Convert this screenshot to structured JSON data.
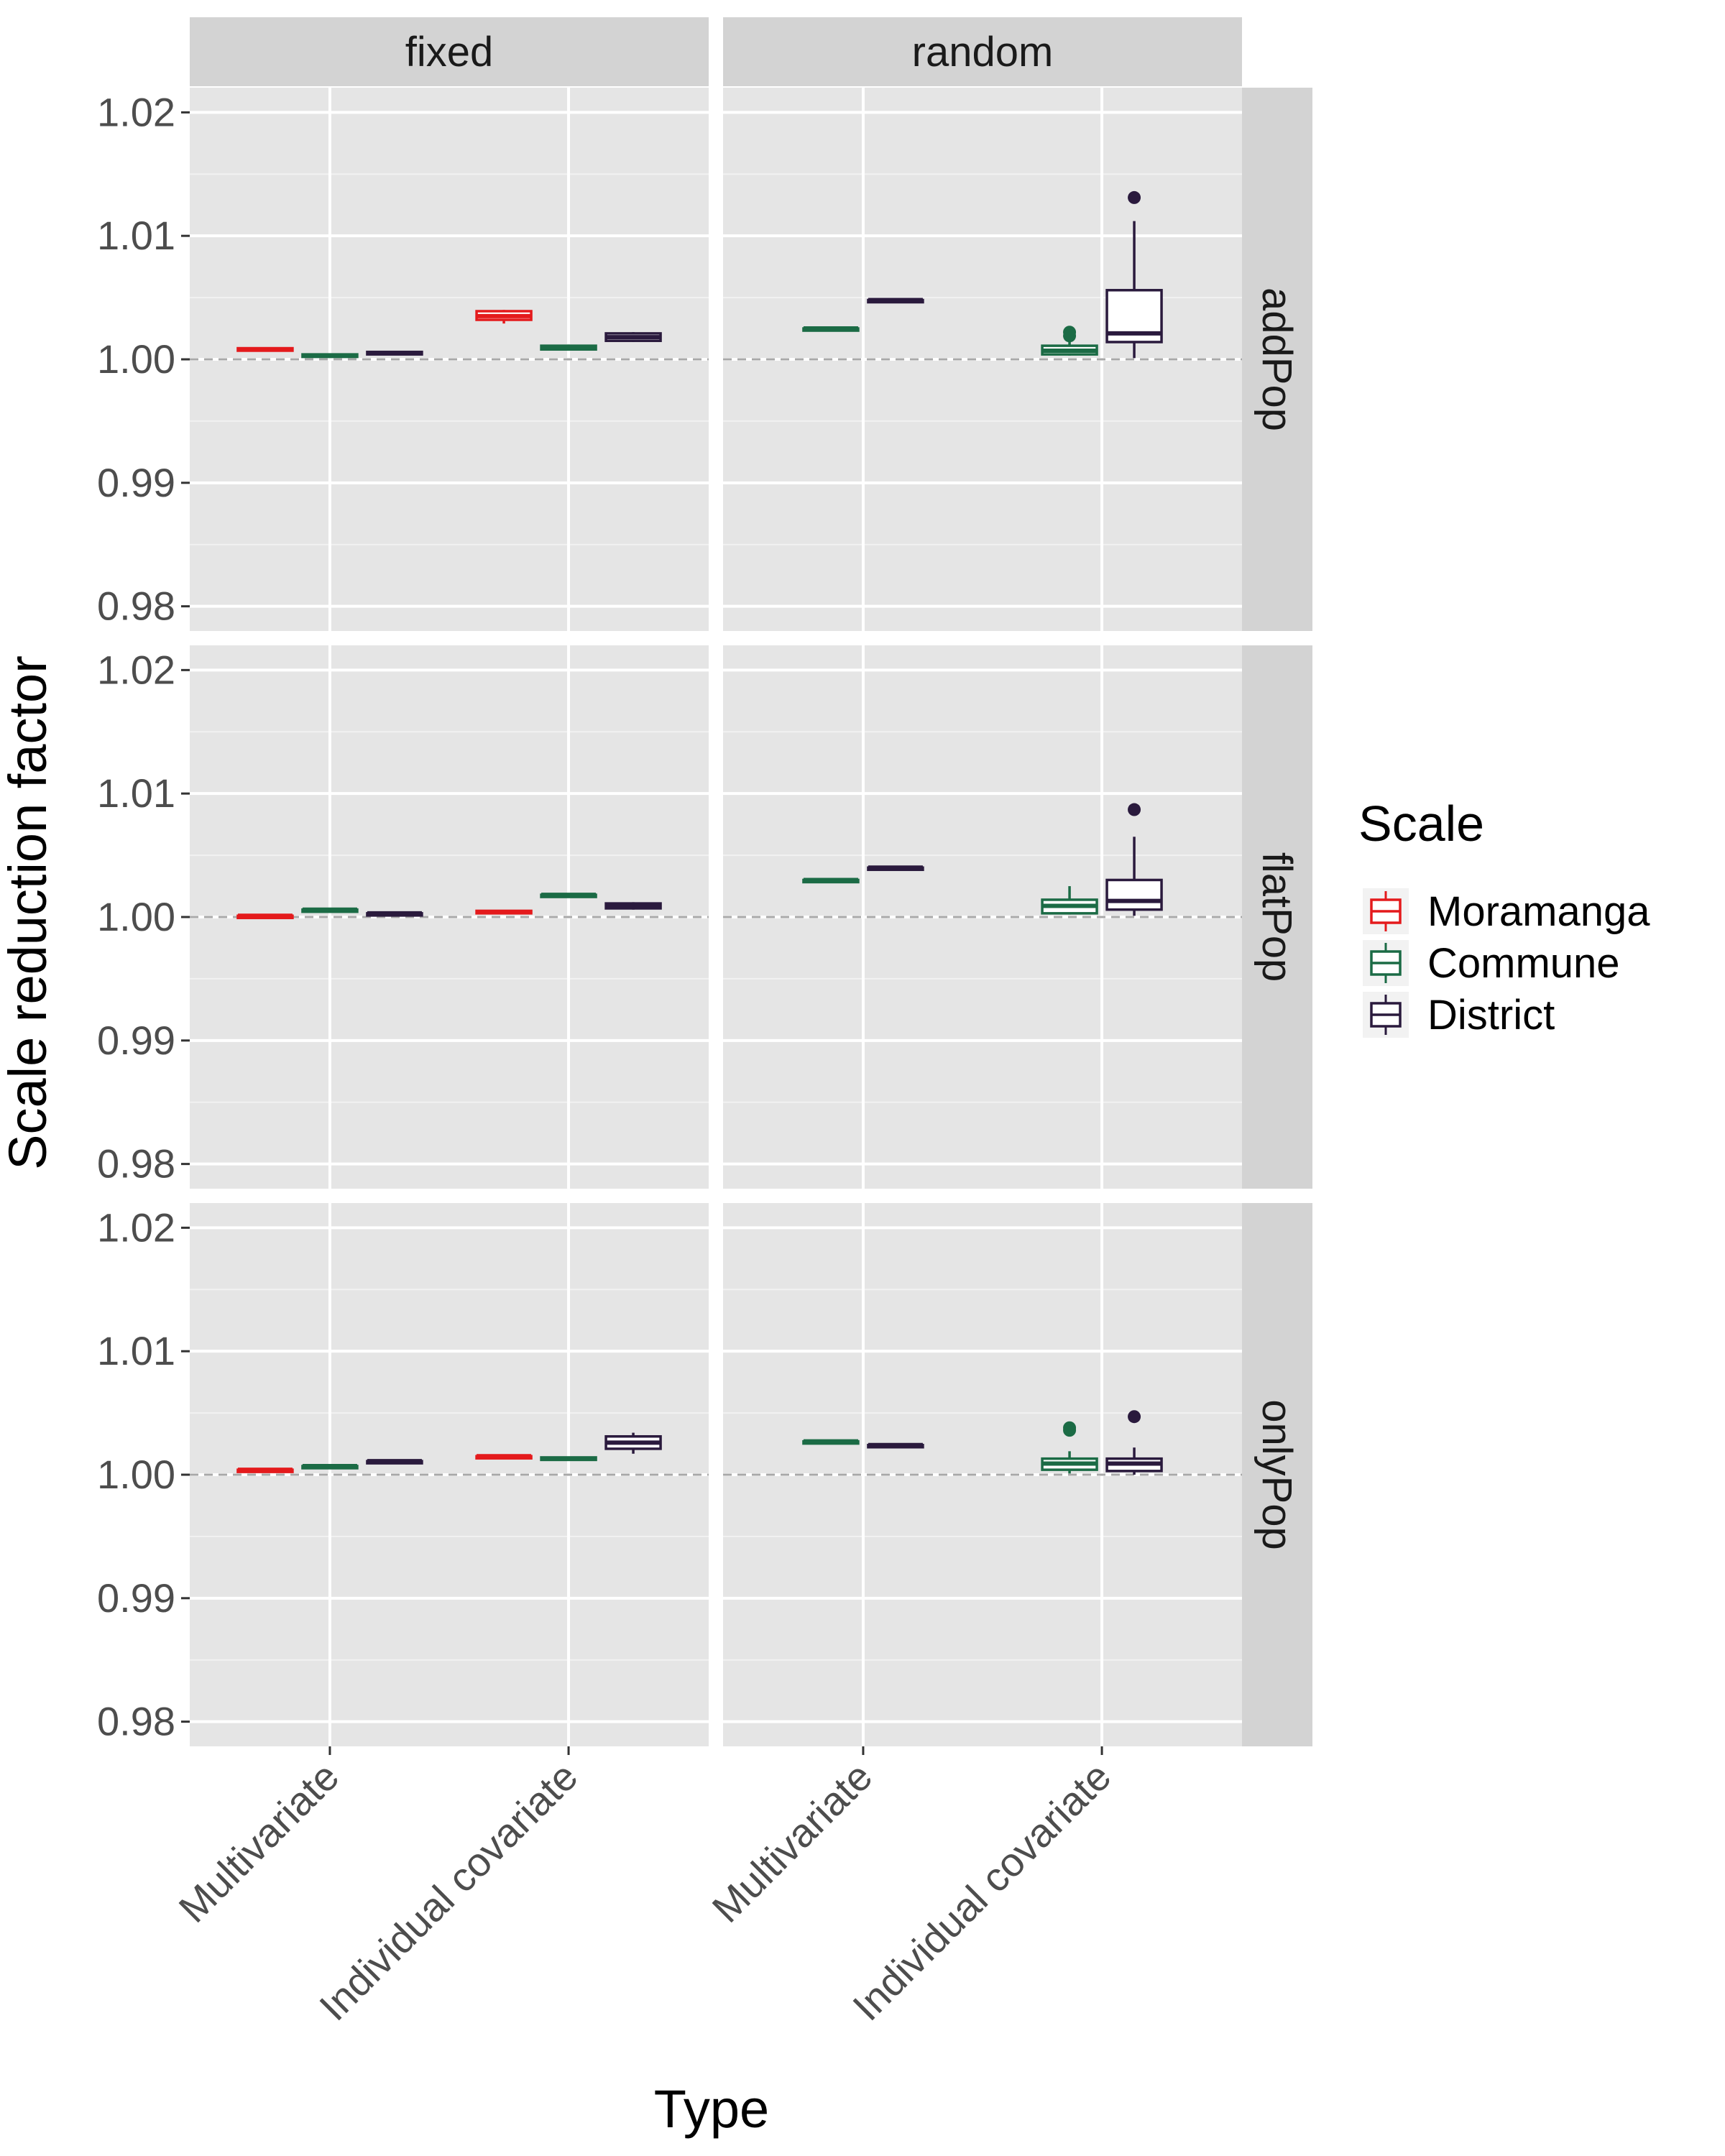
{
  "chart_data": {
    "type": "box",
    "ylabel": "Scale reduction factor",
    "xlabel": "Type",
    "ylim": [
      0.978,
      1.022
    ],
    "yticks": [
      0.98,
      0.99,
      1.0,
      1.01,
      1.02
    ],
    "ytick_labels": [
      "0.98",
      "0.99",
      "1.00",
      "1.01",
      "1.02"
    ],
    "reference_line": 1.0,
    "categories": [
      "Multivariate",
      "Individual covariate"
    ],
    "facet_cols": [
      "fixed",
      "random"
    ],
    "facet_rows": [
      "addPop",
      "flatPop",
      "onlyPop"
    ],
    "legend": {
      "title": "Scale",
      "position": "right",
      "entries": [
        {
          "name": "Moramanga",
          "color": "#e41a1c"
        },
        {
          "name": "Commune",
          "color": "#1b6b45"
        },
        {
          "name": "District",
          "color": "#2a1a3d"
        }
      ]
    },
    "panels": [
      {
        "col": "fixed",
        "row": "addPop",
        "boxes": [
          {
            "category": "Multivariate",
            "scale": "Moramanga",
            "min": 1.0007,
            "q1": 1.0007,
            "median": 1.0008,
            "q3": 1.0009,
            "max": 1.0009,
            "outliers": []
          },
          {
            "category": "Multivariate",
            "scale": "Commune",
            "min": 1.0002,
            "q1": 1.0002,
            "median": 1.0003,
            "q3": 1.0004,
            "max": 1.0004,
            "outliers": []
          },
          {
            "category": "Multivariate",
            "scale": "District",
            "min": 1.0004,
            "q1": 1.0004,
            "median": 1.0005,
            "q3": 1.0006,
            "max": 1.0006,
            "outliers": []
          },
          {
            "category": "Individual covariate",
            "scale": "Moramanga",
            "min": 1.0029,
            "q1": 1.0032,
            "median": 1.0035,
            "q3": 1.0039,
            "max": 1.004,
            "outliers": []
          },
          {
            "category": "Individual covariate",
            "scale": "Commune",
            "min": 1.0008,
            "q1": 1.0008,
            "median": 1.001,
            "q3": 1.0011,
            "max": 1.0012,
            "outliers": []
          },
          {
            "category": "Individual covariate",
            "scale": "District",
            "min": 1.0014,
            "q1": 1.0015,
            "median": 1.0018,
            "q3": 1.0021,
            "max": 1.0022,
            "outliers": []
          }
        ]
      },
      {
        "col": "random",
        "row": "addPop",
        "boxes": [
          {
            "category": "Multivariate",
            "scale": "Commune",
            "min": 1.0024,
            "q1": 1.0024,
            "median": 1.0025,
            "q3": 1.0025,
            "max": 1.0025,
            "outliers": []
          },
          {
            "category": "Multivariate",
            "scale": "District",
            "min": 1.0047,
            "q1": 1.0047,
            "median": 1.0048,
            "q3": 1.0048,
            "max": 1.0048,
            "outliers": []
          },
          {
            "category": "Individual covariate",
            "scale": "Commune",
            "min": 1.0003,
            "q1": 1.0004,
            "median": 1.0007,
            "q3": 1.0011,
            "max": 1.0016,
            "outliers": [
              1.0022,
              1.0019
            ]
          },
          {
            "category": "Individual covariate",
            "scale": "District",
            "min": 1.0001,
            "q1": 1.0014,
            "median": 1.0021,
            "q3": 1.0056,
            "max": 1.0112,
            "outliers": [
              1.0131
            ]
          }
        ]
      },
      {
        "col": "fixed",
        "row": "flatPop",
        "boxes": [
          {
            "category": "Multivariate",
            "scale": "Moramanga",
            "min": 1.0,
            "q1": 1.0,
            "median": 1.0001,
            "q3": 1.0001,
            "max": 1.0001,
            "outliers": []
          },
          {
            "category": "Multivariate",
            "scale": "Commune",
            "min": 1.0005,
            "q1": 1.0005,
            "median": 1.0006,
            "q3": 1.0006,
            "max": 1.0006,
            "outliers": []
          },
          {
            "category": "Multivariate",
            "scale": "District",
            "min": 1.0002,
            "q1": 1.0002,
            "median": 1.0003,
            "q3": 1.0003,
            "max": 1.0003,
            "outliers": []
          },
          {
            "category": "Individual covariate",
            "scale": "Moramanga",
            "min": 1.0003,
            "q1": 1.0003,
            "median": 1.0004,
            "q3": 1.0005,
            "max": 1.0005,
            "outliers": []
          },
          {
            "category": "Individual covariate",
            "scale": "Commune",
            "min": 1.0017,
            "q1": 1.0017,
            "median": 1.0018,
            "q3": 1.0018,
            "max": 1.0018,
            "outliers": []
          },
          {
            "category": "Individual covariate",
            "scale": "District",
            "min": 1.0006,
            "q1": 1.0007,
            "median": 1.0009,
            "q3": 1.0011,
            "max": 1.0012,
            "outliers": []
          }
        ]
      },
      {
        "col": "random",
        "row": "flatPop",
        "boxes": [
          {
            "category": "Multivariate",
            "scale": "Commune",
            "min": 1.0029,
            "q1": 1.0029,
            "median": 1.003,
            "q3": 1.003,
            "max": 1.003,
            "outliers": []
          },
          {
            "category": "Multivariate",
            "scale": "District",
            "min": 1.0039,
            "q1": 1.0039,
            "median": 1.004,
            "q3": 1.004,
            "max": 1.004,
            "outliers": []
          },
          {
            "category": "Individual covariate",
            "scale": "Commune",
            "min": 1.0002,
            "q1": 1.0003,
            "median": 1.0009,
            "q3": 1.0014,
            "max": 1.0025,
            "outliers": []
          },
          {
            "category": "Individual covariate",
            "scale": "District",
            "min": 1.0001,
            "q1": 1.0006,
            "median": 1.0013,
            "q3": 1.003,
            "max": 1.0065,
            "outliers": [
              1.0087
            ]
          }
        ]
      },
      {
        "col": "fixed",
        "row": "onlyPop",
        "boxes": [
          {
            "category": "Multivariate",
            "scale": "Moramanga",
            "min": 1.0003,
            "q1": 1.0003,
            "median": 1.0004,
            "q3": 1.0004,
            "max": 1.0004,
            "outliers": []
          },
          {
            "category": "Multivariate",
            "scale": "Commune",
            "min": 1.0006,
            "q1": 1.0006,
            "median": 1.0007,
            "q3": 1.0007,
            "max": 1.0007,
            "outliers": []
          },
          {
            "category": "Multivariate",
            "scale": "District",
            "min": 1.001,
            "q1": 1.001,
            "median": 1.0011,
            "q3": 1.0011,
            "max": 1.0011,
            "outliers": []
          },
          {
            "category": "Individual covariate",
            "scale": "Moramanga",
            "min": 1.0014,
            "q1": 1.0014,
            "median": 1.0015,
            "q3": 1.0015,
            "max": 1.0015,
            "outliers": []
          },
          {
            "category": "Individual covariate",
            "scale": "Commune",
            "min": 1.0012,
            "q1": 1.0012,
            "median": 1.0013,
            "q3": 1.0014,
            "max": 1.0014,
            "outliers": []
          },
          {
            "category": "Individual covariate",
            "scale": "District",
            "min": 1.0017,
            "q1": 1.0021,
            "median": 1.0026,
            "q3": 1.0031,
            "max": 1.0034,
            "outliers": []
          }
        ]
      },
      {
        "col": "random",
        "row": "onlyPop",
        "boxes": [
          {
            "category": "Multivariate",
            "scale": "Commune",
            "min": 1.0026,
            "q1": 1.0026,
            "median": 1.0027,
            "q3": 1.0027,
            "max": 1.0027,
            "outliers": []
          },
          {
            "category": "Multivariate",
            "scale": "District",
            "min": 1.0023,
            "q1": 1.0023,
            "median": 1.0024,
            "q3": 1.0024,
            "max": 1.0024,
            "outliers": []
          },
          {
            "category": "Individual covariate",
            "scale": "Commune",
            "min": 1.0001,
            "q1": 1.0004,
            "median": 1.0009,
            "q3": 1.0013,
            "max": 1.0019,
            "outliers": [
              1.0038,
              1.0036
            ]
          },
          {
            "category": "Individual covariate",
            "scale": "District",
            "min": 1.0,
            "q1": 1.0003,
            "median": 1.0009,
            "q3": 1.0013,
            "max": 1.0022,
            "outliers": [
              1.0047
            ]
          }
        ]
      }
    ]
  }
}
